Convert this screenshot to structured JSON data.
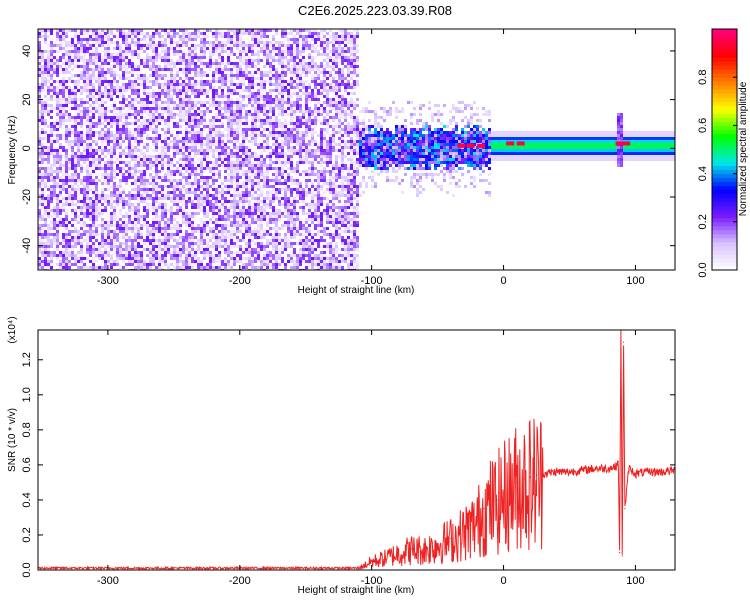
{
  "figure": {
    "title": "C2E6.2025.223.03.39.R08"
  },
  "chart_data": [
    {
      "type": "heatmap",
      "name": "spectrogram",
      "xlabel": "Height of straight line (km)",
      "ylabel": "Frequency (Hz)",
      "xlim": [
        -353,
        130
      ],
      "ylim": [
        -50,
        49
      ],
      "x_ticks": [
        -300,
        -200,
        -100,
        0,
        100
      ],
      "y_ticks": [
        -40,
        -20,
        0,
        20,
        40
      ],
      "x_tick_labels": [
        "-300",
        "-200",
        "-100",
        "0",
        "100"
      ],
      "y_tick_labels": [
        "-40",
        "-20",
        "0",
        "20",
        "40"
      ],
      "colorbar": {
        "label": "Normalized spectral amplitude",
        "range": [
          0,
          1
        ],
        "ticks": [
          0.0,
          0.2,
          0.4,
          0.6,
          0.8
        ],
        "tick_labels": [
          "0.0",
          "0.2",
          "0.4",
          "0.6",
          "0.8"
        ],
        "colors": [
          "#ffffff",
          "#d8c4ff",
          "#7a1cff",
          "#0000ff",
          "#00e8e8",
          "#00ff00",
          "#ffff00",
          "#ff8000",
          "#ff0000",
          "#ff0080"
        ]
      },
      "regions": [
        {
          "description": "broadband noise",
          "x_range": [
            -353,
            -110
          ],
          "freq_range": [
            -50,
            49
          ],
          "amplitude_range": [
            0.0,
            0.2
          ]
        },
        {
          "description": "turbulent signal",
          "x_range": [
            -110,
            -10
          ],
          "center_freq": 0,
          "half_width": 6,
          "amplitude_range": [
            0.1,
            0.45
          ]
        },
        {
          "description": "steady signal",
          "x_range": [
            -10,
            130
          ],
          "center_freq": 1,
          "half_width": 4,
          "amplitude_range": [
            0.3,
            0.55
          ]
        }
      ],
      "peaks": [
        {
          "x": -32,
          "freq": 1,
          "amplitude": 0.95
        },
        {
          "x": -25,
          "freq": 1,
          "amplitude": 0.95
        },
        {
          "x": -17,
          "freq": 1,
          "amplitude": 0.95
        },
        {
          "x": 5,
          "freq": 2,
          "amplitude": 0.95
        },
        {
          "x": 13,
          "freq": 2,
          "amplitude": 0.95
        },
        {
          "x": 88,
          "freq": 2,
          "amplitude": 0.95
        },
        {
          "x": 93,
          "freq": 2,
          "amplitude": 0.95
        }
      ],
      "spike": {
        "x": 88,
        "freq_range": [
          -8,
          14
        ]
      }
    },
    {
      "type": "line",
      "name": "snr",
      "xlabel": "Height of straight line (km)",
      "ylabel": "SNR (10 * v/v)",
      "y_multiplier": "(x10⁴)",
      "xlim": [
        -353,
        130
      ],
      "ylim": [
        0,
        1.37
      ],
      "x_ticks": [
        -300,
        -200,
        -100,
        0,
        100
      ],
      "y_ticks": [
        0.0,
        0.2,
        0.4,
        0.6,
        0.8,
        1.0,
        1.2
      ],
      "x_tick_labels": [
        "-300",
        "-200",
        "-100",
        "0",
        "100"
      ],
      "y_tick_labels": [
        "0.0",
        "0.2",
        "0.4",
        "0.6",
        "0.8",
        "1.0",
        "1.2"
      ],
      "color": "#ee2222",
      "series": [
        {
          "x": [
            -353,
            -200,
            -110,
            -100,
            -90,
            -80,
            -70,
            -60,
            -50,
            -40,
            -30,
            -20,
            -15,
            -10,
            -5,
            0,
            5,
            10,
            15,
            20,
            25,
            30,
            40,
            50,
            60,
            70,
            80,
            85,
            87,
            88,
            89,
            90,
            91,
            92,
            95,
            100,
            110,
            120,
            130
          ],
          "y": [
            0.01,
            0.01,
            0.01,
            0.05,
            0.07,
            0.1,
            0.12,
            0.12,
            0.15,
            0.18,
            0.22,
            0.28,
            0.35,
            0.38,
            0.4,
            0.44,
            0.47,
            0.5,
            0.52,
            0.53,
            0.54,
            0.55,
            0.56,
            0.56,
            0.57,
            0.58,
            0.58,
            0.59,
            0.62,
            0.1,
            1.37,
            0.08,
            1.3,
            0.35,
            0.58,
            0.55,
            0.56,
            0.56,
            0.57
          ]
        }
      ]
    }
  ]
}
